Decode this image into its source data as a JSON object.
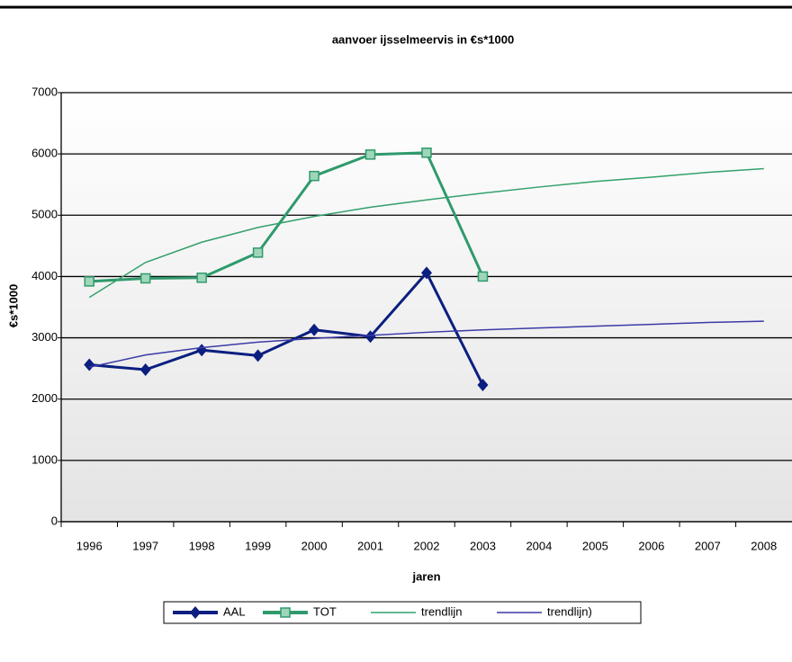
{
  "chart_data": {
    "type": "line",
    "title": "aanvoer ijsselmeervis in €s*1000",
    "x_label": "jaren",
    "y_label": "€s*1000",
    "categories": [
      "1996",
      "1997",
      "1998",
      "1999",
      "2000",
      "2001",
      "2002",
      "2003",
      "2004",
      "2005",
      "2006",
      "2007",
      "2008"
    ],
    "series": [
      {
        "name": "AAL",
        "color": "#0b1f80",
        "marker": "diamond",
        "values": [
          2560,
          2480,
          2800,
          2710,
          3130,
          3020,
          4060,
          2230,
          null,
          null,
          null,
          null,
          null
        ]
      },
      {
        "name": "TOT",
        "color": "#2f9a6c",
        "marker": "square",
        "values": [
          3920,
          3970,
          3980,
          4390,
          5640,
          5990,
          6020,
          4000,
          null,
          null,
          null,
          null,
          null
        ]
      },
      {
        "name": "trendlijn",
        "color": "#33a06a",
        "values": [
          3660,
          4230,
          4560,
          4800,
          4980,
          5130,
          5250,
          5360,
          5460,
          5550,
          5620,
          5700,
          5760
        ]
      },
      {
        "name": "trendlijn)",
        "color": "#3a3aa8",
        "values": [
          2520,
          2720,
          2840,
          2930,
          2990,
          3040,
          3090,
          3130,
          3160,
          3190,
          3220,
          3250,
          3270
        ]
      }
    ],
    "ylim": [
      0,
      7000
    ],
    "yticks": [
      0,
      1000,
      2000,
      3000,
      4000,
      5000,
      6000,
      7000
    ],
    "grid": true
  }
}
